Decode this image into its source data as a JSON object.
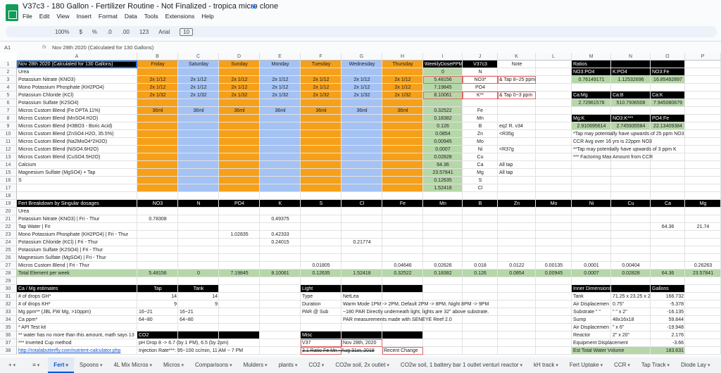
{
  "header": {
    "title": "V37c3 - 180 Gallon - Fertilizer Routine - Not Finalized - tropica micro clone",
    "menu": [
      "File",
      "Edit",
      "View",
      "Insert",
      "Format",
      "Data",
      "Tools",
      "Extensions",
      "Help"
    ],
    "toolbar": [
      "100%",
      "$",
      "%",
      ".0",
      ".00",
      "123",
      "Arial",
      "10"
    ]
  },
  "formula_bar": {
    "cell": "A1",
    "content": "Nov 28th 2020 (Calculated for 130 Gallons)"
  },
  "sheet": {
    "columns": [
      "A",
      "B",
      "C",
      "D",
      "E",
      "F",
      "G",
      "H",
      "I",
      "J",
      "K",
      "L",
      "M",
      "N",
      "O",
      "P"
    ],
    "rows": [
      {
        "n": 1,
        "cells": {
          "A": "Nov 28th 2020 (Calculated for 130 Gallons)",
          "B": "Friday",
          "C": "Saturday",
          "D": "Sunday",
          "E": "Monday",
          "F": "Tuesday",
          "G": "Wednesday",
          "H": "Thursday",
          "I": "WeeklyDosePPM",
          "J": "V37c3",
          "K": "Note",
          "M": "Ratios"
        }
      },
      {
        "n": 2,
        "cells": {
          "A": "Urea",
          "I": 0,
          "J": "N",
          "M": "NO3:PO4",
          "N": "K:PO4",
          "O": "NO3:Fe"
        }
      },
      {
        "n": 3,
        "cells": {
          "A": "Potassium Nitrate (KNO3)",
          "B": "2x 1/12",
          "C": "2x 1/12",
          "D": "2x 1/12",
          "E": "2x 1/12",
          "F": "2x 1/12",
          "G": "2x 1/12",
          "H": "2x 1/12",
          "I": 5.48156,
          "J": "NO3*",
          "K": "& Tap 8~25 ppm",
          "M": 0.76149171,
          "N": 1.12532696,
          "O": 16.85492897
        }
      },
      {
        "n": 4,
        "cells": {
          "A": "Mono Potassium Phosphate (KH2PO4)",
          "B": "2x 1/12",
          "C": "2x 1/12",
          "D": "2x 1/12",
          "E": "2x 1/12",
          "F": "2x 1/12",
          "G": "2x 1/12",
          "H": "2x 1/12",
          "I": 7.19845,
          "J": "PO4"
        }
      },
      {
        "n": 5,
        "cells": {
          "A": "Potassium Chloride (KCl)",
          "B": "2x 1/32",
          "C": "2x 1/32",
          "D": "2x 1/32",
          "E": "2x 1/32",
          "F": "2x 1/32",
          "G": "2x 1/32",
          "H": "2x 1/32",
          "I": 8.10061,
          "J": "K**",
          "K": "& Tap 0~3 ppm",
          "M": "Ca:Mg",
          "N": "Ca:B",
          "O": "Ca:K"
        }
      },
      {
        "n": 6,
        "cells": {
          "A": "Potassium Sulfate (K2SO4)",
          "M": 2.72961578,
          "N": 510.7936508,
          "O": 7.945080679
        }
      },
      {
        "n": 7,
        "cells": {
          "A": "Micros Custom Blend (Fe DPTA 11%)",
          "B": "36ml",
          "C": "36ml",
          "D": "36ml",
          "E": "36ml",
          "F": "36ml",
          "G": "36ml",
          "H": "36ml",
          "I": 0.32522,
          "J": "Fe"
        }
      },
      {
        "n": 8,
        "cells": {
          "A": "Micros Custom Blend (MnSO4.H2O)",
          "I": 0.18382,
          "J": "Mn",
          "M": "Mg:K",
          "N": "NO3:K***",
          "O": "PO4:Fe"
        }
      },
      {
        "n": 9,
        "cells": {
          "A": "Micros Custom Blend (H3BO3 - Boric Acid)",
          "I": 0.126,
          "J": "B",
          "K": "eq2 R. v34",
          "M": 2.910695614,
          "N": 2.745935584,
          "O": 22.13409384
        }
      },
      {
        "n": 10,
        "cells": {
          "A": "Micros Custom Blend (ZnSO4.H2O, 35.5%)",
          "I": 0.0854,
          "J": "Zn",
          "K": "<R35g",
          "M": "*Tap may potentially have upwards of 25 ppm NO3"
        }
      },
      {
        "n": 11,
        "cells": {
          "A": "Micros Custom Blend (Na2MoO4*2H2O)",
          "I": 0.00945,
          "J": "Mo",
          "M": "CCR Avg over 16 yrs is 22ppm NO3"
        }
      },
      {
        "n": 12,
        "cells": {
          "A": "Micros Custom Blend (NiSO4.6H2O)",
          "I": 0.0007,
          "J": "Ni",
          "K": "<R37g",
          "M": "**Tap may potentially have upwards of 3 ppm K"
        }
      },
      {
        "n": 13,
        "cells": {
          "A": "Micros Custom Blend (CuSO4.5H2O)",
          "I": 0.02828,
          "J": "Cu",
          "M": "*** Factoring Max Amount from CCR"
        }
      },
      {
        "n": 14,
        "cells": {
          "A": "Calcium",
          "I": 64.36,
          "J": "Ca",
          "K": "All tap"
        }
      },
      {
        "n": 15,
        "cells": {
          "A": "Magnesium Sulfate (MgSO4) + Tap",
          "I": 23.57841,
          "J": "Mg",
          "K": "All tap"
        }
      },
      {
        "n": 16,
        "cells": {
          "A": "S",
          "I": 0.12635,
          "J": "S"
        }
      },
      {
        "n": 17,
        "cells": {
          "I": 1.52418,
          "J": "Cl"
        }
      },
      {
        "n": 18,
        "cells": {}
      },
      {
        "n": 19,
        "cells": {
          "A": "Fert Breakdown by Singular dosages",
          "B": "NO3",
          "C": "N",
          "D": "PO4",
          "E": "K",
          "F": "S",
          "G": "Cl",
          "H": "Fe",
          "I": "Mn",
          "J": "B",
          "K": "Zn",
          "L": "Mo",
          "M": "Ni",
          "N": "Cu",
          "O": "Ca",
          "P": "Mg"
        }
      },
      {
        "n": 20,
        "cells": {
          "A": "Urea"
        }
      },
      {
        "n": 21,
        "cells": {
          "A": "Potassium Nitrate (KNO3) | Fri - Thur",
          "B": 0.78308,
          "E": 0.49375
        }
      },
      {
        "n": 22,
        "cells": {
          "A": "Tap Water | Fri",
          "O": 64.36,
          "P": 21.74
        }
      },
      {
        "n": 23,
        "cells": {
          "A": "Mono Potassium Phosphate (KH2PO4) | Fri - Thur",
          "D": 1.02835,
          "E": 0.42333
        }
      },
      {
        "n": 24,
        "cells": {
          "A": "Potassium Chloride (KCl) | Fri - Thur",
          "E": 0.24015,
          "G": 0.21774
        }
      },
      {
        "n": 25,
        "cells": {
          "A": "Potassium Sulfate (K2SO4) | Fri - Thur"
        }
      },
      {
        "n": 26,
        "cells": {
          "A": "Magnesium Sulfate (MgSO4) | Fri - Thur"
        }
      },
      {
        "n": 27,
        "cells": {
          "A": "Micros Custom Blend | Fri - Thur",
          "F": 0.01805,
          "H": 0.04646,
          "I": 0.02626,
          "J": 0.018,
          "K": 0.0122,
          "L": 0.00135,
          "M": 0.0001,
          "N": 0.00404,
          "P": 0.26263
        }
      },
      {
        "n": 28,
        "cells": {
          "A": "Total Element per week",
          "B": 5.48156,
          "C": 0,
          "D": 7.19845,
          "E": 8.10061,
          "F": 0.12635,
          "G": 1.52418,
          "H": 0.32522,
          "I": 0.18382,
          "J": 0.126,
          "K": 0.0854,
          "L": 0.00945,
          "M": 0.0007,
          "N": 0.02828,
          "O": 64.36,
          "P": 23.57841
        }
      },
      {
        "n": 29,
        "cells": {}
      },
      {
        "n": 30,
        "cells": {
          "A": "Ca / Mg estimates",
          "B": "Tap",
          "C": "Tank",
          "F": "Light",
          "M": "Inner Dimensions",
          "O": "Gallons"
        }
      },
      {
        "n": 31,
        "cells": {
          "A": "# of drops GH*",
          "B": 14,
          "C": 14,
          "F": "Type",
          "G": "NetLea",
          "M": "Tank",
          "N": "71.25 x 23.25 x 2",
          "O": 166.732
        }
      },
      {
        "n": 32,
        "cells": {
          "A": "# of drops KH*",
          "B": 9,
          "C": 9,
          "F": "Duration",
          "G": "Warm Mode 1PM -> 2PM, Default 2PM -> 8PM, Night 8PM -> 9PM",
          "M": "Air Displacemen",
          "N": "0.75\"",
          "O": -5.378
        }
      },
      {
        "n": 33,
        "cells": {
          "A": "Mg ppm** (JBL FW Mg, >10ppm)",
          "B": "16~21",
          "C": "16~21",
          "F": "PAR @ Sub",
          "G": "~180 PAR Directly underneath light, lights are 32\" above substrate.",
          "M": "Substrate \"  \"",
          "N": "\"  \" x 2\"",
          "O": -16.135
        }
      },
      {
        "n": 34,
        "cells": {
          "A": "Ca ppm*",
          "B": "64~80",
          "C": "64~80",
          "G": "PAR measurements made with SENEYE Reef 2.0",
          "M": "Sump",
          "N": "48x16x18",
          "O": 59.844
        }
      },
      {
        "n": 35,
        "cells": {
          "A": "* API Test kit",
          "M": "Air Displacemen",
          "N": "\" x 6\"",
          "O": -19.948
        }
      },
      {
        "n": 36,
        "cells": {
          "A": "** water has no more than this amount, math says 13",
          "B": "CO2",
          "F": "Misc",
          "M": "Reactor",
          "N": "2\" x 20\"",
          "O": 2.176
        }
      },
      {
        "n": 37,
        "cells": {
          "A": "*** Inverted Cup method",
          "B": "pH Drop 8 -> 6.7 (by 1 PM), 6.5 (by 2pm)",
          "F": "V37",
          "G": "Nov 28th, 2020",
          "M": "Equipment Displacement",
          "O": -3.66
        }
      },
      {
        "n": 38,
        "cells": {
          "A": "http://rotalabutterfly.com/nutrient-calculator.php",
          "B": "Injection Rate***: 95~100 cc/min, 11 AM ~ 7 PM",
          "F": "3.1 Ratio Fe Mn - Aug 31st, 2018",
          "H": "Recent Change",
          "M": "Est Total Water Volume",
          "O": 183.631
        }
      }
    ]
  },
  "tabs": [
    "Fert",
    "Spoons",
    "4L Mix Micros",
    "Micros",
    "Comparisons",
    "Mulders",
    "plants",
    "CO2",
    "CO2w soil, 2x outlet",
    "CO2w soil, 1 battery bar 1 outlet venturi reactor",
    "kH track",
    "Fert Uptake",
    "CCR",
    "Tap Track",
    "Diode Lay"
  ]
}
